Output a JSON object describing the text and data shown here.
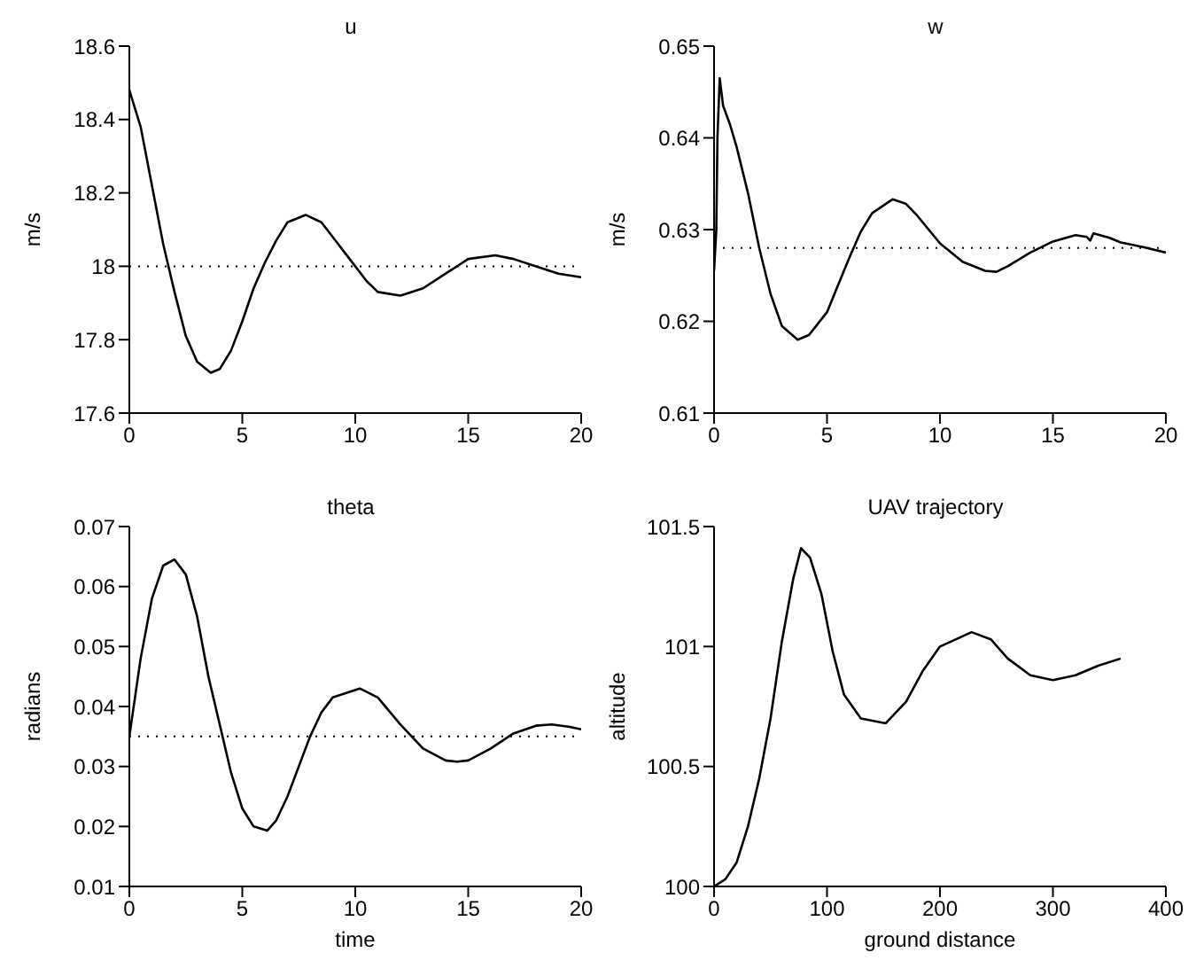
{
  "chart_data": [
    {
      "type": "line",
      "title": "u",
      "ylabel": "m/s",
      "xlim": [
        0,
        20
      ],
      "xticks": [
        0,
        5,
        10,
        15,
        20
      ],
      "ylim": [
        17.6,
        18.6
      ],
      "yticks": [
        17.6,
        17.8,
        18,
        18.2,
        18.4,
        18.6
      ],
      "grid": false,
      "legend": false,
      "marker": "none",
      "line_style": "solid",
      "ref_lines": [
        {
          "axis": "y",
          "value": 18,
          "line_style": "dotted",
          "color": "#000000"
        }
      ],
      "series": [
        {
          "color": "#000000",
          "x": [
            0,
            0.5,
            1,
            1.5,
            2,
            2.5,
            3,
            3.6,
            4,
            4.5,
            5,
            5.5,
            6,
            6.5,
            7,
            7.8,
            8.5,
            9,
            9.5,
            10,
            10.5,
            11,
            12,
            13,
            14,
            15,
            16.2,
            17,
            18,
            19,
            20
          ],
          "values": [
            18.48,
            18.38,
            18.22,
            18.06,
            17.93,
            17.81,
            17.74,
            17.71,
            17.72,
            17.77,
            17.85,
            17.94,
            18.01,
            18.07,
            18.12,
            18.14,
            18.12,
            18.08,
            18.04,
            18.0,
            17.96,
            17.93,
            17.92,
            17.94,
            17.98,
            18.02,
            18.03,
            18.02,
            18.0,
            17.98,
            17.97
          ]
        }
      ]
    },
    {
      "type": "line",
      "title": "w",
      "ylabel": "m/s",
      "xlim": [
        0,
        20
      ],
      "xticks": [
        0,
        5,
        10,
        15,
        20
      ],
      "ylim": [
        0.61,
        0.65
      ],
      "yticks": [
        0.61,
        0.62,
        0.63,
        0.64,
        0.65
      ],
      "grid": false,
      "legend": false,
      "marker": "none",
      "line_style": "solid",
      "ref_lines": [
        {
          "axis": "y",
          "value": 0.628,
          "line_style": "dotted",
          "color": "#000000"
        }
      ],
      "series": [
        {
          "color": "#000000",
          "x": [
            0,
            0.1,
            0.15,
            0.25,
            0.4,
            0.7,
            1,
            1.5,
            2,
            2.5,
            3,
            3.7,
            4.2,
            5,
            5.5,
            6,
            6.5,
            7,
            7.9,
            8.5,
            9,
            10,
            11,
            12,
            12.5,
            13,
            14,
            15,
            16,
            16.5,
            16.65,
            16.8,
            17.5,
            18,
            19,
            20
          ],
          "values": [
            0.6255,
            0.63,
            0.64,
            0.6465,
            0.6435,
            0.6415,
            0.639,
            0.634,
            0.628,
            0.623,
            0.6195,
            0.618,
            0.6185,
            0.621,
            0.624,
            0.627,
            0.6298,
            0.6318,
            0.6333,
            0.6328,
            0.6315,
            0.6285,
            0.6265,
            0.6255,
            0.6254,
            0.626,
            0.6275,
            0.6287,
            0.6294,
            0.6292,
            0.6288,
            0.6296,
            0.6291,
            0.6286,
            0.6281,
            0.6275
          ]
        }
      ]
    },
    {
      "type": "line",
      "title": "theta",
      "xlabel": "time",
      "ylabel": "radians",
      "xlim": [
        0,
        20
      ],
      "xticks": [
        0,
        5,
        10,
        15,
        20
      ],
      "ylim": [
        0.01,
        0.07
      ],
      "yticks": [
        0.01,
        0.02,
        0.03,
        0.04,
        0.05,
        0.06,
        0.07
      ],
      "grid": false,
      "legend": false,
      "marker": "none",
      "line_style": "solid",
      "ref_lines": [
        {
          "axis": "y",
          "value": 0.035,
          "line_style": "dotted",
          "color": "#000000"
        }
      ],
      "series": [
        {
          "color": "#000000",
          "x": [
            0,
            0.5,
            1,
            1.5,
            2,
            2.5,
            3,
            3.5,
            4,
            4.5,
            5,
            5.5,
            6.1,
            6.5,
            7,
            7.5,
            8,
            8.5,
            9,
            10.2,
            11,
            12,
            13,
            14,
            14.5,
            15,
            16,
            17,
            18,
            18.7,
            19.5,
            20
          ],
          "values": [
            0.035,
            0.048,
            0.058,
            0.0635,
            0.0645,
            0.062,
            0.055,
            0.045,
            0.037,
            0.029,
            0.023,
            0.02,
            0.0193,
            0.021,
            0.025,
            0.03,
            0.035,
            0.039,
            0.0415,
            0.043,
            0.0415,
            0.037,
            0.033,
            0.031,
            0.0308,
            0.031,
            0.033,
            0.0355,
            0.0368,
            0.037,
            0.0366,
            0.0362
          ]
        }
      ]
    },
    {
      "type": "line",
      "title": "UAV trajectory",
      "xlabel": "ground distance",
      "ylabel": "altitude",
      "xlim": [
        0,
        400
      ],
      "xticks": [
        0,
        100,
        200,
        300,
        400
      ],
      "ylim": [
        100,
        101.5
      ],
      "yticks": [
        100,
        100.5,
        101,
        101.5
      ],
      "grid": false,
      "legend": false,
      "marker": "none",
      "line_style": "solid",
      "series": [
        {
          "color": "#000000",
          "x": [
            0,
            10,
            20,
            30,
            40,
            50,
            60,
            70,
            77,
            85,
            95,
            105,
            115,
            130,
            152,
            170,
            185,
            200,
            228,
            245,
            260,
            280,
            300,
            320,
            340,
            360
          ],
          "values": [
            100,
            100.03,
            100.1,
            100.25,
            100.45,
            100.7,
            101.02,
            101.28,
            101.41,
            101.37,
            101.22,
            100.98,
            100.8,
            100.7,
            100.68,
            100.77,
            100.9,
            101.0,
            101.06,
            101.03,
            100.95,
            100.88,
            100.86,
            100.88,
            100.92,
            100.95
          ]
        }
      ]
    }
  ]
}
